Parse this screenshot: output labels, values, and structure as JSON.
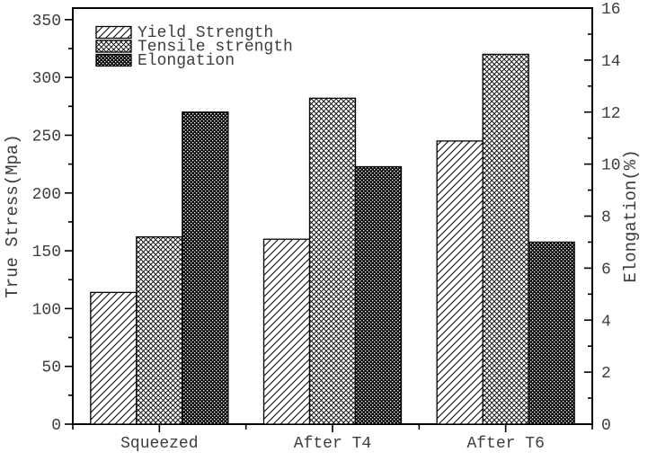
{
  "chart_data": {
    "type": "bar",
    "title": "",
    "categories": [
      "Squeezed",
      "After T4",
      "After T6"
    ],
    "series": [
      {
        "name": "Yield Strength",
        "axis": "left",
        "pattern": "diagonal-hatch",
        "values": [
          114,
          160,
          245
        ]
      },
      {
        "name": "Tensile strength",
        "axis": "left",
        "pattern": "crosshatch",
        "values": [
          162,
          282,
          320
        ]
      },
      {
        "name": "Elongation",
        "axis": "right",
        "pattern": "dense-checker",
        "values": [
          12,
          9.9,
          7
        ]
      }
    ],
    "left_axis": {
      "label": "True Stress(Mpa)",
      "min": 0,
      "max": 360,
      "tick_labels": [
        0,
        50,
        100,
        150,
        200,
        250,
        300,
        350
      ],
      "major_tick_step": 50,
      "minor_tick_step": 25
    },
    "right_axis": {
      "label": "Elongation(%)",
      "min": 0,
      "max": 16,
      "tick_labels": [
        0,
        2,
        4,
        6,
        8,
        10,
        12,
        14,
        16
      ],
      "major_tick_step": 2,
      "minor_tick_step": 1
    },
    "legend": {
      "position": "top-left",
      "entries": [
        "Yield Strength",
        "Tensile strength",
        "Elongation"
      ]
    },
    "grid": false,
    "colors": {
      "background": "#ffffff",
      "axis": "#000000",
      "bar_outline": "#000000",
      "text": "#3d3d3d"
    }
  }
}
